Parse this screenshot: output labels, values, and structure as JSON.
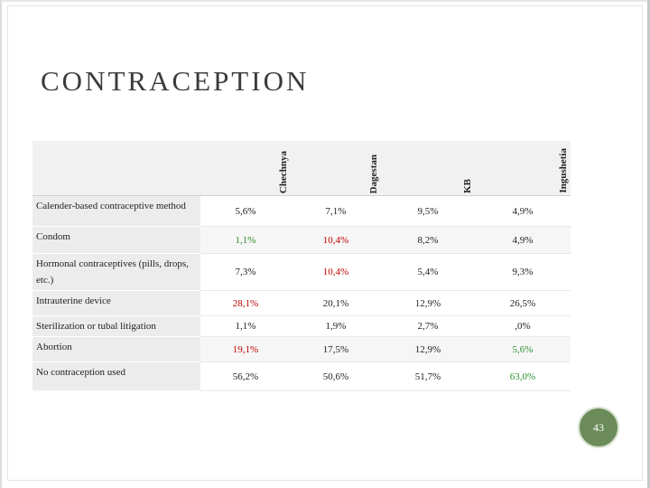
{
  "slide": {
    "title": "CONTRACEPTION",
    "page_number": "43",
    "colors": {
      "red": "#c00000",
      "green": "#2f8f2f",
      "badge": "#6b8c5a"
    }
  },
  "table": {
    "columns": [
      "Chechnya",
      "Dagestan",
      "KB",
      "Ingushetia"
    ],
    "rows": [
      {
        "label": "Calender-based contraceptive method",
        "cells": [
          {
            "v": "5,6%"
          },
          {
            "v": "7,1%"
          },
          {
            "v": "9,5%"
          },
          {
            "v": "4,9%"
          }
        ]
      },
      {
        "label": "Condom",
        "cells": [
          {
            "v": "1,1%",
            "c": "green"
          },
          {
            "v": "10,4%",
            "c": "red"
          },
          {
            "v": "8,2%"
          },
          {
            "v": "4,9%"
          }
        ]
      },
      {
        "label": "Hormonal contraceptives (pills, drops, etc.)",
        "cells": [
          {
            "v": "7,3%"
          },
          {
            "v": "10,4%",
            "c": "red"
          },
          {
            "v": "5,4%"
          },
          {
            "v": "9,3%"
          }
        ]
      },
      {
        "label": "Intrauterine device",
        "cells": [
          {
            "v": "28,1%",
            "c": "red"
          },
          {
            "v": "20,1%"
          },
          {
            "v": "12,9%"
          },
          {
            "v": "26,5%"
          }
        ]
      },
      {
        "label": "Sterilization or tubal litigation",
        "cells": [
          {
            "v": "1,1%"
          },
          {
            "v": "1,9%"
          },
          {
            "v": "2,7%"
          },
          {
            "v": ",0%"
          }
        ]
      },
      {
        "label": "Abortion",
        "cells": [
          {
            "v": "19,1%",
            "c": "red"
          },
          {
            "v": "17,5%"
          },
          {
            "v": "12,9%"
          },
          {
            "v": "5,6%",
            "c": "green"
          }
        ]
      },
      {
        "label": "No contraception used",
        "cells": [
          {
            "v": "56,2%"
          },
          {
            "v": "50,6%"
          },
          {
            "v": "51,7%"
          },
          {
            "v": "63,0%",
            "c": "green"
          }
        ]
      }
    ]
  }
}
